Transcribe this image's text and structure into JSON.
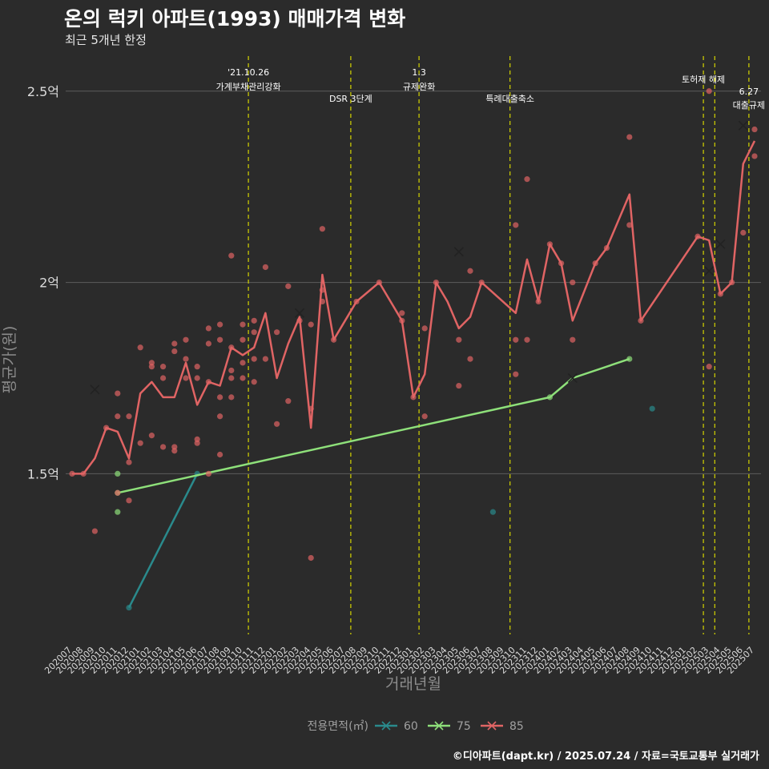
{
  "page": {
    "title": "온의 럭키 아파트(1993) 매매가격 변화",
    "subtitle": "최근 5개년 한정",
    "credit": "©디아파트(dapt.kr) / 2025.07.24 / 자료=국토교통부 실거래가"
  },
  "chart_data": {
    "type": "line",
    "xlabel": "거래년월",
    "ylabel": "평균가(원)",
    "ylim": [
      1.08,
      2.6
    ],
    "y_ticks": [
      {
        "v": 1.5,
        "label": "1.5억"
      },
      {
        "v": 2.0,
        "label": "2억"
      },
      {
        "v": 2.5,
        "label": "2.5억"
      }
    ],
    "grid": true,
    "x_months": [
      "202007",
      "202008",
      "202009",
      "202010",
      "202011",
      "202012",
      "202101",
      "202102",
      "202103",
      "202104",
      "202105",
      "202106",
      "202107",
      "202108",
      "202109",
      "202110",
      "202111",
      "202112",
      "202201",
      "202202",
      "202203",
      "202204",
      "202205",
      "202206",
      "202207",
      "202208",
      "202209",
      "202210",
      "202211",
      "202212",
      "202301",
      "202302",
      "202303",
      "202304",
      "202305",
      "202306",
      "202307",
      "202308",
      "202309",
      "202310",
      "202311",
      "202312",
      "202401",
      "202402",
      "202403",
      "202404",
      "202405",
      "202406",
      "202407",
      "202408",
      "202409",
      "202410",
      "202411",
      "202412",
      "202501",
      "202502",
      "202503",
      "202504",
      "202505",
      "202506",
      "202507"
    ],
    "legend": {
      "title": "전용면적(㎡)",
      "position": "bottom"
    },
    "events": [
      {
        "x": 15.5,
        "label1": "'21.10.26",
        "label2": "가계부채관리강화"
      },
      {
        "x": 24.5,
        "label1": "",
        "label2": "DSR 3단계"
      },
      {
        "x": 30.5,
        "label1": "1.3",
        "label2": "규제완화"
      },
      {
        "x": 38.5,
        "label1": "",
        "label2": "특례대출축소"
      },
      {
        "x": 55.5,
        "label1": "토허제 해제",
        "label2": ""
      },
      {
        "x": 56.5,
        "label1": "",
        "label2": ""
      },
      {
        "x": 59.5,
        "label1": "6.27",
        "label2": "대출규제"
      }
    ],
    "series": [
      {
        "name": "60",
        "color": "#2a8a8c",
        "line": [
          [
            5,
            1.15
          ],
          [
            11,
            1.5
          ]
        ],
        "points": [
          [
            5,
            1.15
          ],
          [
            11,
            1.5
          ],
          [
            37,
            1.4
          ],
          [
            51,
            1.67
          ]
        ],
        "crosses": []
      },
      {
        "name": "75",
        "color": "#8ee07a",
        "line": [
          [
            4,
            1.45
          ],
          [
            42,
            1.7
          ],
          [
            44,
            1.75
          ],
          [
            49,
            1.8
          ]
        ],
        "points": [
          [
            4,
            1.5
          ],
          [
            4,
            1.4
          ],
          [
            4,
            1.45
          ],
          [
            42,
            1.7
          ],
          [
            49,
            1.8
          ]
        ],
        "crosses": [
          [
            44,
            1.75
          ]
        ]
      },
      {
        "name": "85",
        "color": "#e06464",
        "line": [
          [
            0,
            1.5
          ],
          [
            1,
            1.5
          ],
          [
            2,
            1.54
          ],
          [
            3,
            1.62
          ],
          [
            4,
            1.61
          ],
          [
            5,
            1.54
          ],
          [
            6,
            1.71
          ],
          [
            7,
            1.74
          ],
          [
            8,
            1.7
          ],
          [
            9,
            1.7
          ],
          [
            10,
            1.79
          ],
          [
            11,
            1.68
          ],
          [
            12,
            1.74
          ],
          [
            13,
            1.73
          ],
          [
            14,
            1.83
          ],
          [
            15,
            1.81
          ],
          [
            16,
            1.83
          ],
          [
            17,
            1.92
          ],
          [
            18,
            1.75
          ],
          [
            19,
            1.84
          ],
          [
            20,
            1.91
          ],
          [
            21,
            1.62
          ],
          [
            22,
            2.02
          ],
          [
            23,
            1.85
          ],
          [
            24,
            1.9
          ],
          [
            25,
            1.95
          ],
          [
            27,
            2.0
          ],
          [
            29,
            1.9
          ],
          [
            30,
            1.7
          ],
          [
            31,
            1.76
          ],
          [
            32,
            2.0
          ],
          [
            33,
            1.95
          ],
          [
            34,
            1.88
          ],
          [
            35,
            1.91
          ],
          [
            36,
            2.0
          ],
          [
            39,
            1.92
          ],
          [
            40,
            2.06
          ],
          [
            41,
            1.95
          ],
          [
            42,
            2.1
          ],
          [
            43,
            2.05
          ],
          [
            44,
            1.9
          ],
          [
            46,
            2.05
          ],
          [
            47,
            2.09
          ],
          [
            49,
            2.23
          ],
          [
            50,
            1.9
          ],
          [
            55,
            2.12
          ],
          [
            56,
            2.11
          ],
          [
            57,
            1.97
          ],
          [
            58,
            2.0
          ],
          [
            59,
            2.31
          ],
          [
            60,
            2.37
          ]
        ],
        "points": [
          [
            0,
            1.5
          ],
          [
            1,
            1.5
          ],
          [
            2,
            1.35
          ],
          [
            3,
            1.62
          ],
          [
            4,
            1.71
          ],
          [
            4,
            1.65
          ],
          [
            4,
            1.45
          ],
          [
            5,
            1.65
          ],
          [
            5,
            1.53
          ],
          [
            5,
            1.43
          ],
          [
            6,
            1.83
          ],
          [
            6,
            1.58
          ],
          [
            7,
            1.79
          ],
          [
            7,
            1.78
          ],
          [
            7,
            1.6
          ],
          [
            8,
            1.78
          ],
          [
            8,
            1.75
          ],
          [
            8,
            1.57
          ],
          [
            9,
            1.84
          ],
          [
            9,
            1.82
          ],
          [
            9,
            1.57
          ],
          [
            9,
            1.56
          ],
          [
            10,
            1.85
          ],
          [
            10,
            1.8
          ],
          [
            10,
            1.75
          ],
          [
            11,
            1.78
          ],
          [
            11,
            1.75
          ],
          [
            11,
            1.59
          ],
          [
            11,
            1.58
          ],
          [
            12,
            1.88
          ],
          [
            12,
            1.84
          ],
          [
            12,
            1.74
          ],
          [
            12,
            1.5
          ],
          [
            13,
            1.89
          ],
          [
            13,
            1.85
          ],
          [
            13,
            1.7
          ],
          [
            13,
            1.65
          ],
          [
            13,
            1.55
          ],
          [
            14,
            2.07
          ],
          [
            14,
            1.83
          ],
          [
            14,
            1.77
          ],
          [
            14,
            1.75
          ],
          [
            14,
            1.7
          ],
          [
            15,
            1.89
          ],
          [
            15,
            1.85
          ],
          [
            15,
            1.79
          ],
          [
            15,
            1.75
          ],
          [
            16,
            1.9
          ],
          [
            16,
            1.87
          ],
          [
            16,
            1.8
          ],
          [
            16,
            1.74
          ],
          [
            17,
            2.04
          ],
          [
            17,
            1.8
          ],
          [
            18,
            1.87
          ],
          [
            18,
            1.63
          ],
          [
            19,
            1.99
          ],
          [
            19,
            1.69
          ],
          [
            20,
            1.9
          ],
          [
            21,
            1.89
          ],
          [
            21,
            1.67
          ],
          [
            21,
            1.28
          ],
          [
            22,
            2.14
          ],
          [
            22,
            1.98
          ],
          [
            22,
            1.95
          ],
          [
            23,
            1.85
          ],
          [
            25,
            1.95
          ],
          [
            27,
            2.0
          ],
          [
            29,
            1.92
          ],
          [
            29,
            1.9
          ],
          [
            30,
            1.7
          ],
          [
            31,
            1.88
          ],
          [
            31,
            1.65
          ],
          [
            32,
            2.0
          ],
          [
            34,
            1.85
          ],
          [
            34,
            1.73
          ],
          [
            35,
            2.03
          ],
          [
            35,
            1.8
          ],
          [
            36,
            2.0
          ],
          [
            39,
            2.15
          ],
          [
            39,
            1.85
          ],
          [
            39,
            1.76
          ],
          [
            40,
            2.27
          ],
          [
            40,
            1.85
          ],
          [
            41,
            1.95
          ],
          [
            42,
            2.1
          ],
          [
            43,
            2.05
          ],
          [
            44,
            2.0
          ],
          [
            44,
            1.85
          ],
          [
            46,
            2.05
          ],
          [
            47,
            2.09
          ],
          [
            49,
            2.38
          ],
          [
            49,
            2.15
          ],
          [
            50,
            1.9
          ],
          [
            55,
            2.12
          ],
          [
            56,
            2.5
          ],
          [
            56,
            1.78
          ],
          [
            57,
            1.97
          ],
          [
            58,
            2.0
          ],
          [
            59,
            2.13
          ],
          [
            60,
            2.4
          ],
          [
            60,
            2.33
          ]
        ],
        "crosses": [
          [
            2,
            1.72
          ],
          [
            20,
            1.92
          ],
          [
            34,
            2.08
          ],
          [
            56,
            2.03
          ],
          [
            57,
            2.1
          ],
          [
            59,
            2.41
          ]
        ]
      }
    ]
  }
}
